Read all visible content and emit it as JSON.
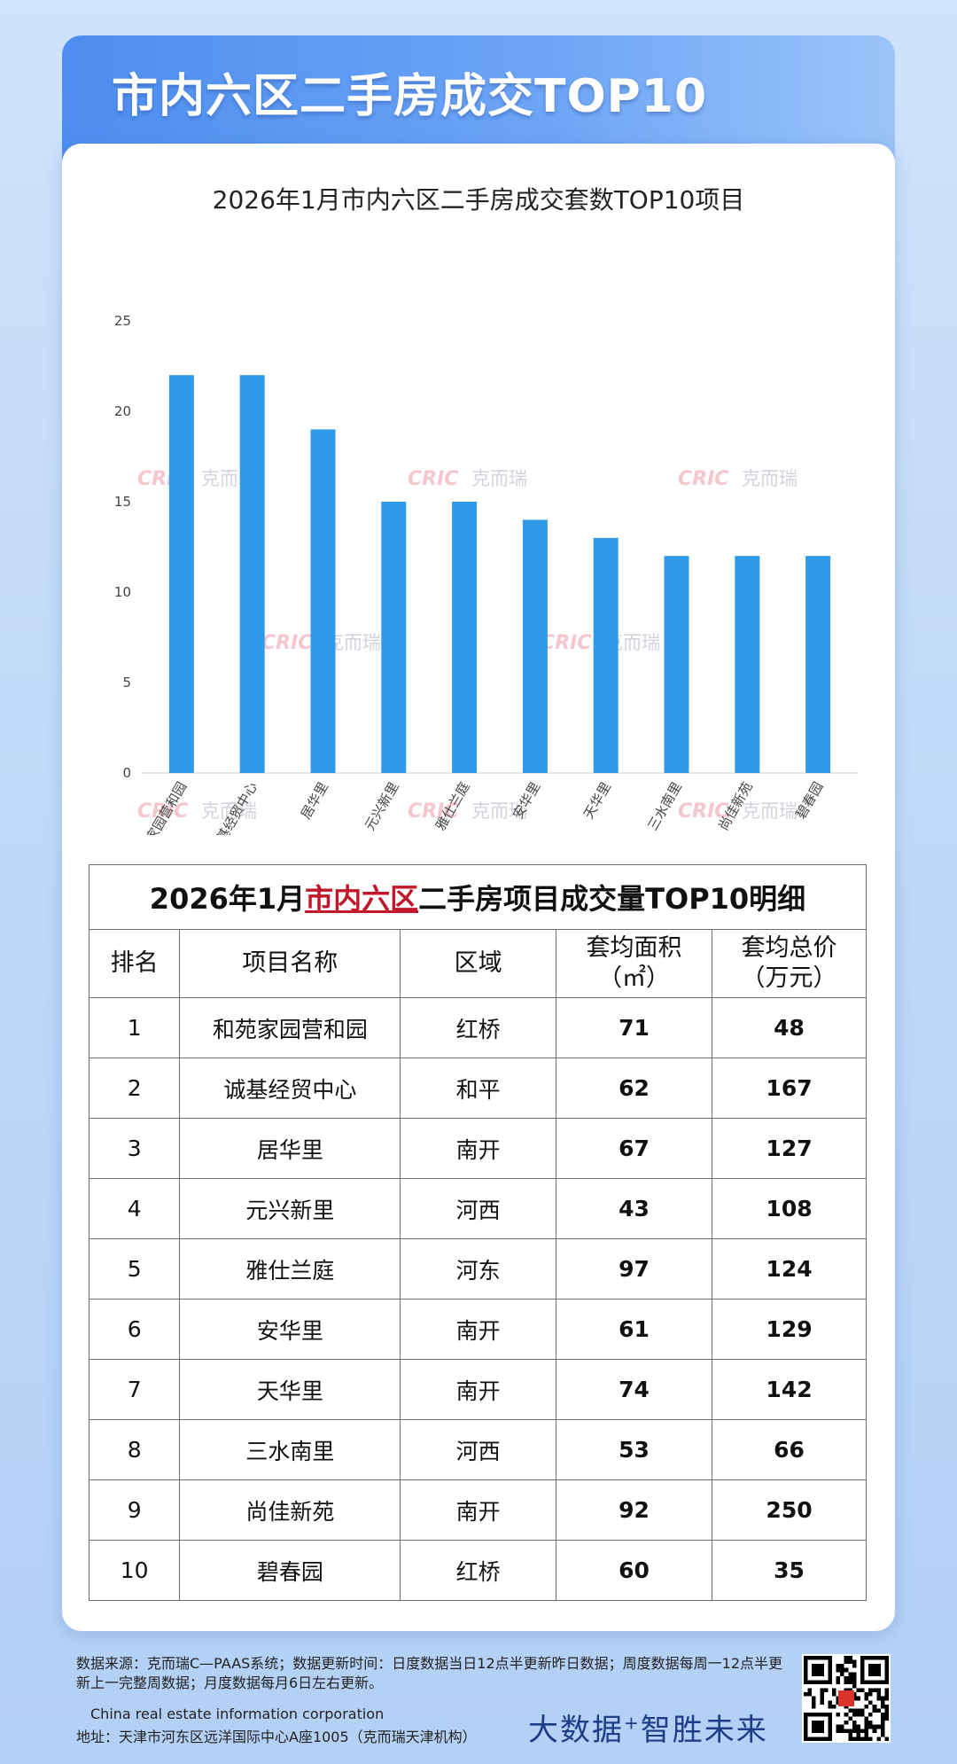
{
  "header": {
    "title": "市内六区二手房成交TOP10"
  },
  "chart_data": {
    "type": "bar",
    "title": "2026年1月市内六区二手房成交套数TOP10项目",
    "categories": [
      "和苑家园营和园",
      "诚基经贸中心",
      "居华里",
      "元兴新里",
      "雅仕兰庭",
      "安华里",
      "天华里",
      "三水南里",
      "尚佳新苑",
      "碧春园"
    ],
    "values": [
      22,
      22,
      19,
      15,
      15,
      14,
      13,
      12,
      12,
      12
    ],
    "ylim": [
      0,
      25
    ],
    "yticks": [
      0,
      5,
      10,
      15,
      20,
      25
    ],
    "grid": false,
    "bar_color": "#2f9be8"
  },
  "watermark": {
    "latin": "CRIC",
    "cn": "克而瑞"
  },
  "table": {
    "caption_pre": "2026年1月",
    "caption_red": "市内六区",
    "caption_post": "二手房项目成交量TOP10明细",
    "headers": [
      "排名",
      "项目名称",
      "区域",
      "套均面积\n（㎡）",
      "套均总价\n（万元）"
    ],
    "rows": [
      [
        "1",
        "和苑家园营和园",
        "红桥",
        "71",
        "48"
      ],
      [
        "2",
        "诚基经贸中心",
        "和平",
        "62",
        "167"
      ],
      [
        "3",
        "居华里",
        "南开",
        "67",
        "127"
      ],
      [
        "4",
        "元兴新里",
        "河西",
        "43",
        "108"
      ],
      [
        "5",
        "雅仕兰庭",
        "河东",
        "97",
        "124"
      ],
      [
        "6",
        "安华里",
        "南开",
        "61",
        "129"
      ],
      [
        "7",
        "天华里",
        "南开",
        "74",
        "142"
      ],
      [
        "8",
        "三水南里",
        "河西",
        "53",
        "66"
      ],
      [
        "9",
        "尚佳新苑",
        "南开",
        "92",
        "250"
      ],
      [
        "10",
        "碧春园",
        "红桥",
        "60",
        "35"
      ]
    ]
  },
  "footer": {
    "note": "数据来源：克而瑞C—PAAS系统；数据更新时间：日度数据当日12点半更新昨日数据；周度数据每周一12点半更新上一完整周数据；月度数据每月6日左右更新。",
    "english": "China real estate information corporation",
    "address": "地址：天津市河东区远洋国际中心A座1005（克而瑞天津机构）",
    "slogan_a": "大数据",
    "slogan_plus": "+",
    "slogan_b": "智胜未来"
  }
}
